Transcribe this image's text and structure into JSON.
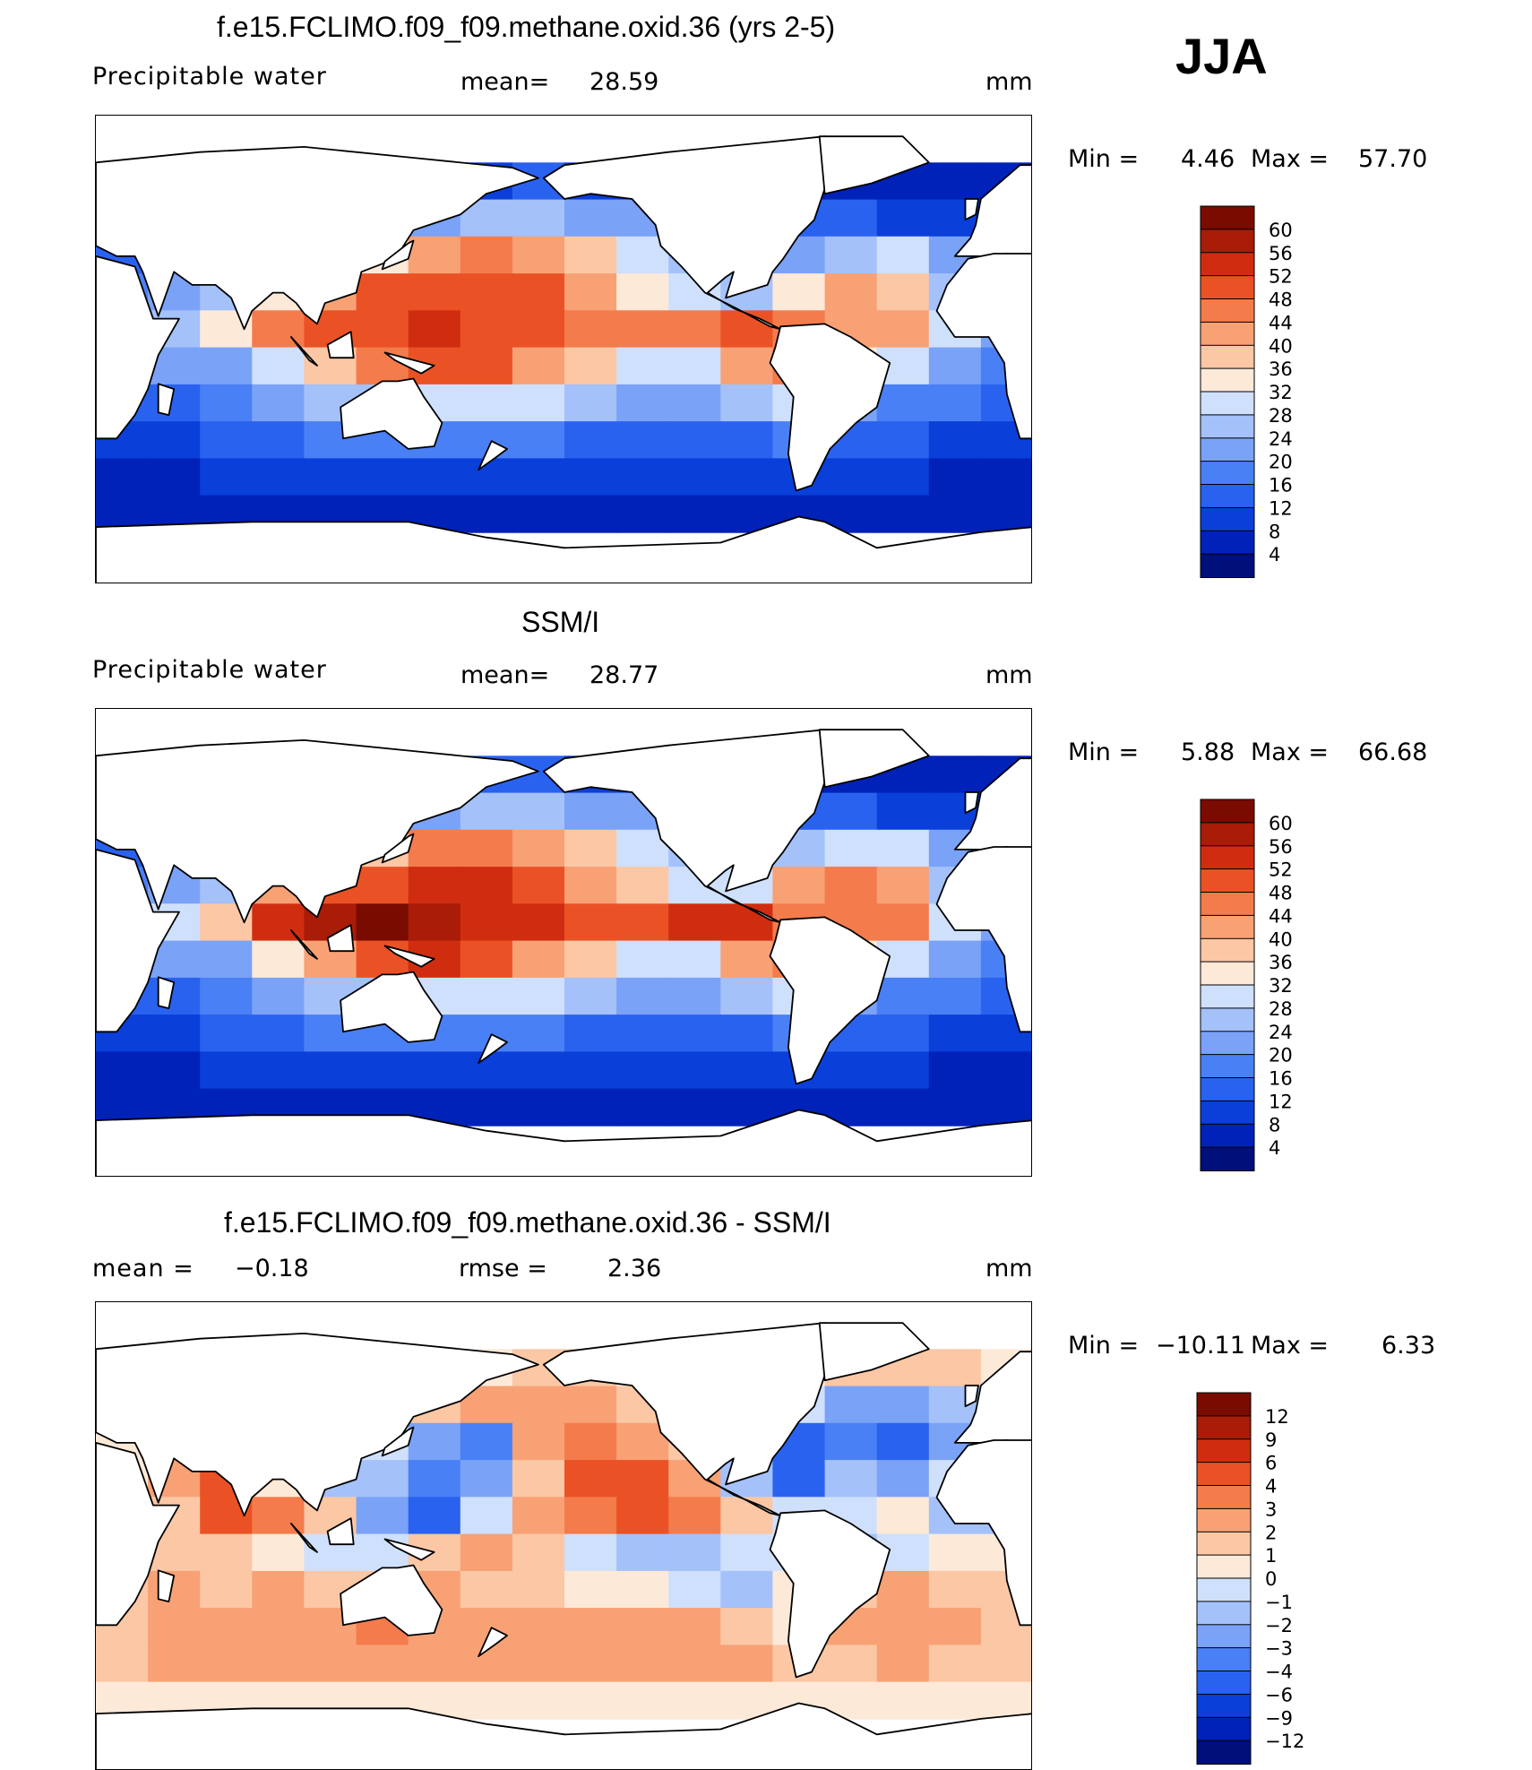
{
  "figure": {
    "season": "JJA",
    "units": "mm"
  },
  "panels": [
    {
      "id": "model",
      "title": "f.e15.FCLIMO.f09_f09.methane.oxid.36 (yrs 2-5)",
      "left_label": "Precipitable water",
      "stat1_label": "mean=",
      "stat1_value": "28.59",
      "stat2_label": "",
      "stat2_value": "",
      "units": "mm",
      "min_label": "Min =",
      "min_value": "4.46",
      "max_label": "Max =",
      "max_value": "57.70",
      "colorbar_ticks": [
        "60",
        "56",
        "52",
        "48",
        "44",
        "40",
        "36",
        "32",
        "28",
        "24",
        "20",
        "16",
        "12",
        "8",
        "4"
      ]
    },
    {
      "id": "obs",
      "title": "SSM/I",
      "left_label": "Precipitable water",
      "stat1_label": "mean=",
      "stat1_value": "28.77",
      "stat2_label": "",
      "stat2_value": "",
      "units": "mm",
      "min_label": "Min =",
      "min_value": "5.88",
      "max_label": "Max =",
      "max_value": "66.68",
      "colorbar_ticks": [
        "60",
        "56",
        "52",
        "48",
        "44",
        "40",
        "36",
        "32",
        "28",
        "24",
        "20",
        "16",
        "12",
        "8",
        "4"
      ]
    },
    {
      "id": "diff",
      "title": "f.e15.FCLIMO.f09_f09.methane.oxid.36 - SSM/I",
      "left_label": "mean =",
      "stat1_label": "",
      "stat1_value": "−0.18",
      "stat2_label": "rmse =",
      "stat2_value": "2.36",
      "units": "mm",
      "min_label": "Min =",
      "min_value": "−10.11",
      "max_label": "Max =",
      "max_value": "6.33",
      "colorbar_ticks": [
        "12",
        "9",
        "6",
        "4",
        "3",
        "2",
        "1",
        "0",
        "−1",
        "−2",
        "−3",
        "−4",
        "−6",
        "−9",
        "−12"
      ]
    }
  ],
  "colors": {
    "scale": [
      "#000f7a",
      "#0022b8",
      "#0a3fd9",
      "#2a62f0",
      "#4a80f5",
      "#7aa2f7",
      "#a4c1fa",
      "#cfe0fc",
      "#fde9d8",
      "#fbc7a5",
      "#f8a175",
      "#f47b4c",
      "#ea5226",
      "#d02d10",
      "#a81c08",
      "#7a0b00"
    ],
    "land": "#ffffff",
    "coast": "#000000"
  },
  "chart_data": [
    {
      "type": "heatmap",
      "title": "f.e15.FCLIMO.f09_f09.methane.oxid.36 (yrs 2-5)",
      "variable": "Precipitable water",
      "units": "mm",
      "mean": 28.59,
      "min": 4.46,
      "max": 57.7,
      "levels": [
        4,
        8,
        12,
        16,
        20,
        24,
        28,
        32,
        36,
        40,
        44,
        48,
        52,
        56,
        60
      ],
      "grid_mm": [
        [
          5,
          5,
          6,
          7,
          8,
          9,
          10,
          11,
          12,
          11,
          10,
          9,
          8,
          7,
          6,
          5,
          5,
          5
        ],
        [
          10,
          12,
          14,
          16,
          18,
          20,
          22,
          24,
          24,
          22,
          20,
          18,
          16,
          14,
          12,
          11,
          10,
          10
        ],
        [
          14,
          18,
          20,
          24,
          28,
          34,
          40,
          44,
          42,
          36,
          30,
          26,
          22,
          22,
          26,
          28,
          20,
          16
        ],
        [
          16,
          22,
          24,
          34,
          42,
          48,
          48,
          50,
          48,
          40,
          34,
          28,
          26,
          34,
          40,
          36,
          26,
          20
        ],
        [
          18,
          26,
          34,
          46,
          50,
          50,
          52,
          50,
          48,
          46,
          44,
          46,
          48,
          44,
          42,
          40,
          30,
          22
        ],
        [
          16,
          20,
          22,
          30,
          38,
          44,
          50,
          48,
          42,
          36,
          30,
          30,
          40,
          44,
          34,
          28,
          22,
          18
        ],
        [
          12,
          14,
          16,
          20,
          24,
          26,
          30,
          30,
          28,
          24,
          22,
          20,
          24,
          28,
          22,
          18,
          16,
          14
        ],
        [
          10,
          10,
          12,
          14,
          16,
          16,
          18,
          18,
          16,
          14,
          14,
          12,
          14,
          16,
          14,
          12,
          10,
          10
        ],
        [
          6,
          6,
          8,
          8,
          10,
          10,
          10,
          10,
          8,
          8,
          8,
          8,
          8,
          10,
          8,
          8,
          6,
          6
        ],
        [
          4,
          4,
          4,
          5,
          5,
          5,
          5,
          5,
          4,
          4,
          4,
          4,
          4,
          5,
          5,
          4,
          4,
          4
        ]
      ]
    },
    {
      "type": "heatmap",
      "title": "SSM/I",
      "variable": "Precipitable water",
      "units": "mm",
      "mean": 28.77,
      "min": 5.88,
      "max": 66.68,
      "levels": [
        4,
        8,
        12,
        16,
        20,
        24,
        28,
        32,
        36,
        40,
        44,
        48,
        52,
        56,
        60
      ],
      "grid_mm": [
        [
          6,
          6,
          7,
          8,
          9,
          10,
          11,
          12,
          12,
          11,
          10,
          9,
          8,
          7,
          6,
          6,
          6,
          6
        ],
        [
          10,
          12,
          14,
          16,
          18,
          20,
          22,
          24,
          24,
          22,
          20,
          18,
          16,
          14,
          12,
          11,
          10,
          10
        ],
        [
          14,
          18,
          20,
          24,
          30,
          38,
          44,
          46,
          42,
          36,
          30,
          26,
          22,
          24,
          30,
          30,
          20,
          16
        ],
        [
          16,
          22,
          26,
          40,
          48,
          50,
          52,
          52,
          48,
          42,
          36,
          30,
          28,
          40,
          44,
          40,
          26,
          20
        ],
        [
          18,
          28,
          38,
          52,
          56,
          60,
          56,
          52,
          52,
          50,
          50,
          52,
          52,
          46,
          44,
          44,
          30,
          22
        ],
        [
          16,
          20,
          22,
          32,
          40,
          48,
          52,
          48,
          42,
          36,
          30,
          30,
          42,
          46,
          34,
          28,
          22,
          18
        ],
        [
          12,
          14,
          16,
          20,
          24,
          26,
          30,
          30,
          28,
          24,
          22,
          20,
          24,
          28,
          22,
          18,
          16,
          14
        ],
        [
          10,
          10,
          12,
          14,
          16,
          16,
          18,
          18,
          16,
          14,
          14,
          12,
          14,
          16,
          14,
          12,
          10,
          10
        ],
        [
          6,
          6,
          8,
          8,
          10,
          10,
          10,
          10,
          8,
          8,
          8,
          8,
          8,
          10,
          8,
          8,
          6,
          6
        ],
        [
          5,
          5,
          5,
          5,
          6,
          6,
          6,
          6,
          5,
          5,
          5,
          5,
          5,
          6,
          6,
          5,
          5,
          5
        ]
      ]
    },
    {
      "type": "heatmap",
      "title": "f.e15.FCLIMO.f09_f09.methane.oxid.36 - SSM/I",
      "variable": "difference",
      "units": "mm",
      "mean": -0.18,
      "rmse": 2.36,
      "min": -10.11,
      "max": 6.33,
      "levels": [
        -12,
        -9,
        -6,
        -4,
        -3,
        -2,
        -1,
        0,
        1,
        2,
        3,
        4,
        6,
        9,
        12
      ],
      "grid_mm": [
        [
          1,
          1,
          0.5,
          0.5,
          0,
          0,
          0,
          0.5,
          1,
          1,
          0.5,
          0,
          0,
          0,
          1,
          1,
          1,
          0.5
        ],
        [
          1,
          1,
          0.5,
          0.5,
          1,
          1,
          1,
          2,
          2,
          2,
          1,
          1,
          0.5,
          -1,
          -3,
          -3,
          -2,
          -1
        ],
        [
          0.5,
          1,
          0.5,
          1,
          2,
          -1,
          -3,
          -4,
          2,
          3,
          2,
          1,
          -3,
          -5,
          -4,
          -5,
          -3,
          -1
        ],
        [
          0,
          2,
          4,
          0,
          -2,
          -2,
          -4,
          -3,
          1,
          4,
          5,
          2,
          -2,
          -6,
          -2,
          -3,
          -1,
          0
        ],
        [
          -2,
          1,
          5,
          3,
          1,
          -3,
          -5,
          -1,
          2,
          3,
          4,
          3,
          1,
          -1,
          -1,
          0,
          -2,
          -2
        ],
        [
          -1,
          1,
          1,
          0.5,
          -1,
          -1,
          1,
          2,
          1,
          -1,
          -2,
          -2,
          -1,
          -1,
          -2,
          -1,
          0,
          0
        ],
        [
          1,
          2,
          1,
          2,
          1,
          1,
          2,
          1,
          1,
          0.5,
          0.5,
          -1,
          -2,
          0,
          1,
          2,
          1,
          1
        ],
        [
          1,
          2,
          2,
          2,
          2,
          3,
          2,
          2,
          2,
          2,
          2,
          2,
          1,
          0.5,
          2,
          2,
          2,
          1
        ],
        [
          1,
          2,
          2,
          2,
          2,
          2,
          2,
          2,
          2,
          2,
          2,
          2,
          2,
          1,
          1,
          2,
          1,
          1
        ],
        [
          0.5,
          0.5,
          0.5,
          0.5,
          0.5,
          0.5,
          0.5,
          0.5,
          0.5,
          0.5,
          0.5,
          0.5,
          0.5,
          0.5,
          0.5,
          0.5,
          0.5,
          0.5
        ]
      ]
    }
  ]
}
